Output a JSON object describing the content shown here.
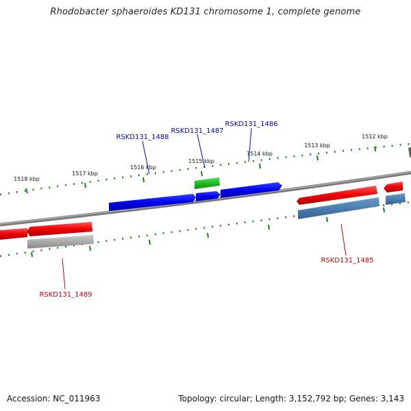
{
  "title": "Rhodobacter sphaeroides KD131 chromosome 1, complete genome",
  "footer": {
    "accession": "Accession: NC_011963",
    "summary": "Topology: circular; Length: 3,152,792 bp; Genes: 3,143"
  },
  "scale": {
    "unit": "kbp",
    "ticks": [
      "1512 kbp",
      "1513 kbp",
      "1514 kbp",
      "1515 kbp",
      "1516 kbp",
      "1517 kbp",
      "1518 kbp"
    ]
  },
  "genes": [
    {
      "label": "RSKD131_1485",
      "strand": "minus",
      "color": "#4a7fb0"
    },
    {
      "label": "RSKD131_1486",
      "strand": "plus",
      "color": "#0000ee"
    },
    {
      "label": "RSKD131_1487",
      "strand": "plus",
      "color": "#0000ee"
    },
    {
      "label": "RSKD131_1488",
      "strand": "plus",
      "color": "#0000ee"
    },
    {
      "label": "RSKD131_1489",
      "strand": "minus",
      "color": "#aaaaaa"
    }
  ],
  "colors": {
    "plus_gene": "#0000ee",
    "plus_rna": "#22bb22",
    "minus_gene": "#4a7fb0",
    "minus_pseudo": "#aaaaaa",
    "cds_red": "#ee0000",
    "backbone": "#888888",
    "tick": "#1e7a1e",
    "label_plus": "#0000cc",
    "label_minus": "#cc0000"
  }
}
